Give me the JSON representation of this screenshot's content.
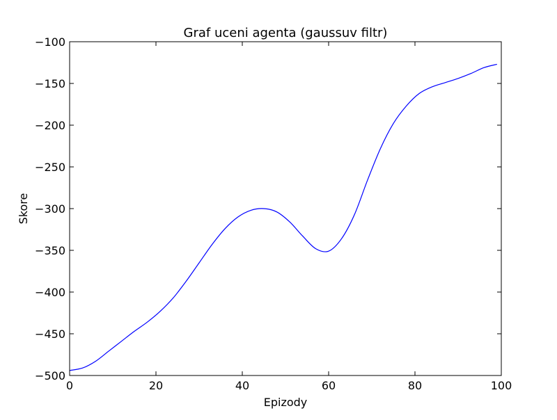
{
  "chart_data": {
    "type": "line",
    "title": "Graf uceni agenta (gaussuv filtr)",
    "xlabel": "Epizody",
    "ylabel": "Skore",
    "xlim": [
      0,
      100
    ],
    "ylim": [
      -500,
      -100
    ],
    "xticks": [
      0,
      20,
      40,
      60,
      80,
      100
    ],
    "yticks": [
      -500,
      -450,
      -400,
      -350,
      -300,
      -250,
      -200,
      -150,
      -100
    ],
    "xtick_labels": [
      "0",
      "20",
      "40",
      "60",
      "80",
      "100"
    ],
    "ytick_labels": [
      "−500",
      "−450",
      "−400",
      "−350",
      "−300",
      "−250",
      "−200",
      "−150",
      "−100"
    ],
    "grid": false,
    "series": [
      {
        "color": "#0000ff",
        "x": [
          0,
          3,
          6,
          9,
          12,
          15,
          18,
          21,
          24,
          27,
          30,
          33,
          36,
          39,
          42,
          45,
          48,
          51,
          54,
          57,
          60,
          63,
          66,
          69,
          72,
          75,
          78,
          81,
          84,
          87,
          90,
          93,
          96,
          99
        ],
        "y": [
          -494,
          -491,
          -483,
          -471,
          -459,
          -447,
          -436,
          -423,
          -407,
          -387,
          -365,
          -343,
          -324,
          -310,
          -302,
          -300,
          -304,
          -316,
          -333,
          -348,
          -351,
          -336,
          -307,
          -266,
          -228,
          -198,
          -177,
          -162,
          -154,
          -149,
          -144,
          -138,
          -131,
          -127
        ]
      }
    ]
  }
}
